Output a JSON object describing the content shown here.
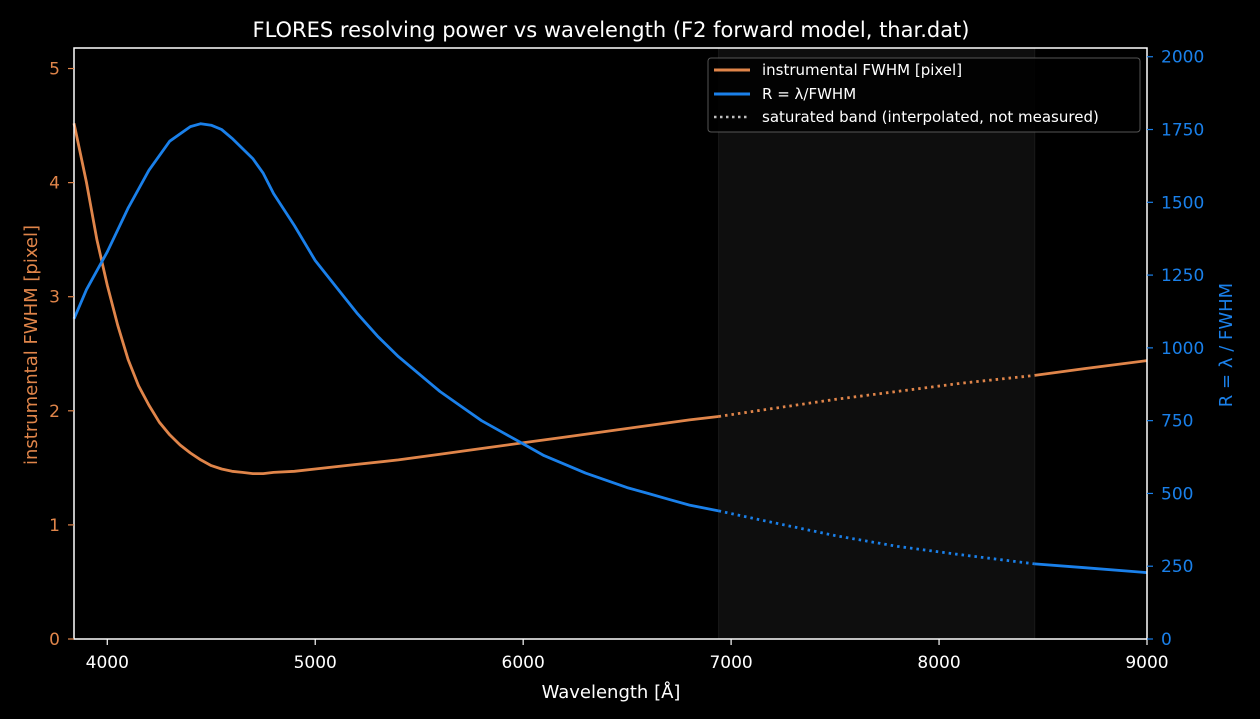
{
  "chart_data": {
    "type": "line",
    "title": "FLORES resolving power vs wavelength (F2 forward model, thar.dat)",
    "xlabel": "Wavelength [Å]",
    "ylabel_left": "instrumental FWHM [pixel]",
    "ylabel_right": "R = λ / FWHM",
    "xlim": [
      3840,
      9000
    ],
    "ylim_left": [
      0,
      5.18
    ],
    "ylim_right": [
      0,
      2030
    ],
    "xticks": [
      "4000",
      "5000",
      "6000",
      "7000",
      "8000",
      "9000"
    ],
    "yticks_left": [
      "0",
      "1",
      "2",
      "3",
      "4",
      "5"
    ],
    "yticks_right": [
      "0",
      "250",
      "500",
      "750",
      "1000",
      "1250",
      "1500",
      "1750",
      "2000"
    ],
    "grid": false,
    "legend_position": "top-right",
    "saturated_band": [
      6940,
      8460
    ],
    "colors": {
      "fwhm": "#e0854a",
      "resolving_power": "#1a80ea",
      "band_fill": "#0e0e0e",
      "axes": "#ffffff",
      "background": "#000000"
    },
    "series": [
      {
        "name": "instrumental FWHM [pixel]",
        "axis": "left",
        "x": [
          3840,
          3900,
          3950,
          4000,
          4050,
          4100,
          4150,
          4200,
          4250,
          4300,
          4350,
          4400,
          4450,
          4500,
          4550,
          4600,
          4650,
          4700,
          4750,
          4800,
          4900,
          5000,
          5200,
          5400,
          5600,
          5800,
          6000,
          6200,
          6400,
          6600,
          6800,
          6940,
          7200,
          7500,
          7800,
          8100,
          8460,
          8700,
          9000
        ],
        "values": [
          4.52,
          4.0,
          3.5,
          3.1,
          2.75,
          2.45,
          2.22,
          2.05,
          1.9,
          1.79,
          1.7,
          1.63,
          1.57,
          1.52,
          1.49,
          1.47,
          1.46,
          1.45,
          1.45,
          1.46,
          1.47,
          1.49,
          1.53,
          1.57,
          1.62,
          1.67,
          1.72,
          1.77,
          1.82,
          1.87,
          1.92,
          1.95,
          2.02,
          2.1,
          2.17,
          2.24,
          2.31,
          2.37,
          2.44
        ]
      },
      {
        "name": "R = λ/FWHM",
        "axis": "right",
        "x": [
          3840,
          3900,
          4000,
          4100,
          4200,
          4300,
          4400,
          4450,
          4500,
          4550,
          4600,
          4700,
          4750,
          4800,
          4900,
          5000,
          5100,
          5200,
          5300,
          5400,
          5500,
          5600,
          5700,
          5800,
          5900,
          6000,
          6100,
          6200,
          6300,
          6400,
          6500,
          6600,
          6700,
          6800,
          6940,
          7200,
          7500,
          7800,
          8100,
          8460,
          8700,
          9000
        ],
        "values": [
          1100,
          1200,
          1330,
          1480,
          1610,
          1710,
          1760,
          1770,
          1765,
          1750,
          1720,
          1650,
          1600,
          1530,
          1420,
          1300,
          1210,
          1120,
          1040,
          970,
          910,
          850,
          800,
          750,
          710,
          670,
          630,
          600,
          570,
          545,
          520,
          500,
          480,
          460,
          440,
          400,
          355,
          318,
          290,
          258,
          245,
          228
        ]
      }
    ],
    "legend": [
      {
        "label": "instrumental FWHM [pixel]",
        "style": "solid",
        "color": "#e0854a"
      },
      {
        "label": "R = λ/FWHM",
        "style": "solid",
        "color": "#1a80ea"
      },
      {
        "label": "saturated band (interpolated, not measured)",
        "style": "dotted",
        "color": "#bfbfbf"
      }
    ]
  }
}
